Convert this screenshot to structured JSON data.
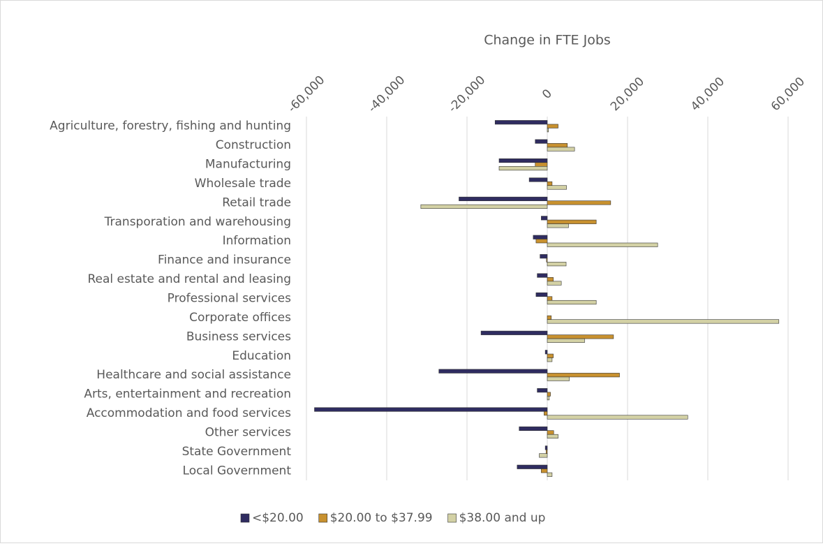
{
  "chart_data": {
    "type": "hbar",
    "x_label": "Change in FTE Jobs",
    "categories": [
      "Agriculture, forestry, fishing and hunting",
      "Construction",
      "Manufacturing",
      "Wholesale trade",
      "Retail trade",
      "Transporation and warehousing",
      "Information",
      "Finance and insurance",
      "Real estate and rental and leasing",
      "Professional services",
      "Corporate offices",
      "Business services",
      "Education",
      "Healthcare and social assistance",
      "Arts, entertainment and recreation",
      "Accommodation and food services",
      "Other services",
      "State Government",
      "Local Government"
    ],
    "series": [
      {
        "name": "<$20.00",
        "color": "#2f2c60",
        "values": [
          -13000,
          -3000,
          -12000,
          -4500,
          -22000,
          -1500,
          -3500,
          -1800,
          -2500,
          -2800,
          0,
          -16500,
          -500,
          -27000,
          -2500,
          -58000,
          -7000,
          -500,
          -7500
        ]
      },
      {
        "name": "$20.00 to $37.99",
        "color": "#c8912f",
        "values": [
          2700,
          5000,
          -3000,
          1200,
          15800,
          12200,
          -2800,
          -200,
          1500,
          1200,
          1000,
          16500,
          1500,
          18000,
          800,
          -800,
          1600,
          -300,
          -1500
        ]
      },
      {
        "name": "$38.00 and up",
        "color": "#d3d1a5",
        "values": [
          300,
          6800,
          -12000,
          4800,
          -31500,
          5300,
          27500,
          4700,
          3500,
          12200,
          57700,
          9300,
          1200,
          5500,
          500,
          35000,
          2700,
          -2000,
          1200
        ]
      }
    ],
    "xlim": [
      -60000,
      60000
    ],
    "xticks": [
      {
        "value": -60000,
        "label": "-60,000"
      },
      {
        "value": -40000,
        "label": "-40,000"
      },
      {
        "value": -20000,
        "label": "-20,000"
      },
      0,
      {
        "value": 20000,
        "label": "20,000"
      },
      {
        "value": 40000,
        "label": "40,000"
      },
      {
        "value": 60000,
        "label": "60,000"
      }
    ],
    "grid": true,
    "legend": "bottom"
  }
}
